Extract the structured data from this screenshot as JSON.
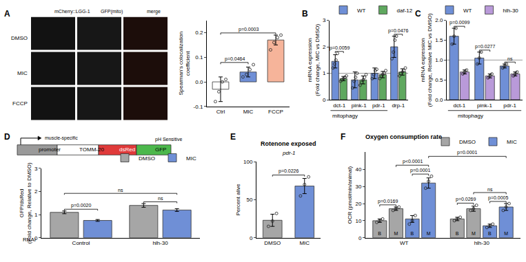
{
  "image_panel": {
    "columns": [
      "mCherry::LGG-1",
      "GFP(mito)",
      "merge"
    ],
    "rows": [
      "DMSO",
      "MIC",
      "FCCP"
    ]
  },
  "construct": {
    "note": "muscle-specific",
    "parts": [
      "promoter",
      "TOMM-20",
      "dsRed",
      "GFP"
    ],
    "tag": "pH Sensitive"
  },
  "chart_data": [
    {
      "panel": "A",
      "type": "bar",
      "categories": [
        "Ctrl",
        "MIC",
        "FCCP"
      ],
      "ylabel": "Spearman's colocalization\ncoefficient",
      "ylim": [
        -0.1,
        0.25
      ],
      "yticks": [
        -0.1,
        {
          "value": 0,
          "label": "0.0"
        },
        0.1,
        0.2
      ],
      "grid": false,
      "series": [
        {
          "colors": [
            "#ffffff",
            "#6f8fd6",
            "#f6b49a"
          ],
          "values": [
            -0.03,
            0.04,
            0.17
          ],
          "errors": [
            0.05,
            0.02,
            0.02
          ],
          "points": [
            [
              -0.08,
              -0.04,
              0.0,
              0.01
            ],
            [
              0.02,
              0.03,
              0.05,
              0.07
            ],
            [
              0.13,
              0.16,
              0.18,
              0.19
            ]
          ]
        }
      ],
      "comparisons": [
        {
          "from": {
            "category": "Ctrl"
          },
          "to": {
            "category": "MIC"
          },
          "text": "p=0.0464"
        },
        {
          "from": {
            "category": "Ctrl"
          },
          "to": {
            "category": "FCCP"
          },
          "text": "p=0.0003"
        }
      ]
    },
    {
      "panel": "B",
      "type": "bar",
      "categories": [
        "dct-1",
        "pink-1",
        "pdr-1",
        "drp-1"
      ],
      "ylabel": "mRNA expression\n(Fold change, MIC vs DMSO)",
      "ylim": [
        0,
        3
      ],
      "yticks": [
        0,
        1,
        2,
        3
      ],
      "grid": false,
      "baseline": 1,
      "legend": "upper left",
      "group_label": {
        "text": "mitophagy",
        "categories": [
          "dct-1",
          "pink-1",
          "pdr-1"
        ]
      },
      "series": [
        {
          "name": "WT",
          "color": "#6f8fd6",
          "values": [
            1.45,
            0.75,
            1.0,
            2.0
          ],
          "errors": [
            0.25,
            0.3,
            0.2,
            0.4
          ],
          "points": [
            [
              1.2,
              1.35,
              1.5,
              1.75
            ],
            [
              0.45,
              0.7,
              0.85,
              1.0
            ],
            [
              0.8,
              0.95,
              1.1,
              1.15
            ],
            [
              1.55,
              1.8,
              2.25,
              2.4
            ]
          ]
        },
        {
          "name": "daf-12",
          "color": "#5fa85f",
          "values": [
            0.8,
            0.75,
            0.95,
            1.05
          ],
          "errors": [
            0.08,
            0.15,
            0.12,
            0.12
          ],
          "points": [
            [
              0.7,
              0.75,
              0.8,
              0.85,
              0.9
            ],
            [
              0.55,
              0.65,
              0.75,
              0.85,
              0.95
            ],
            [
              0.8,
              0.9,
              0.95,
              1.0,
              1.1
            ],
            [
              0.9,
              1.0,
              1.05,
              1.1,
              1.2
            ]
          ]
        }
      ],
      "comparisons": [
        {
          "from": {
            "category": "dct-1",
            "series": "WT"
          },
          "to": {
            "category": "dct-1",
            "series": "daf-12"
          },
          "text": "p=0.0059"
        },
        {
          "from": {
            "category": "drp-1",
            "series": "WT"
          },
          "to": {
            "category": "drp-1",
            "series": "daf-12"
          },
          "text": "p=0.0476"
        }
      ]
    },
    {
      "panel": "C",
      "type": "bar",
      "categories": [
        "dct-1",
        "pink-1",
        "pdr-1"
      ],
      "ylabel": "mRNA expression\n(Fold change, Relative MIC vs DMSO)",
      "ylim": [
        0,
        2
      ],
      "yticks": [
        {
          "value": 0,
          "label": "0.0"
        },
        0.5,
        {
          "value": 1,
          "label": "1.0"
        },
        1.5,
        {
          "value": 2,
          "label": "2.0"
        }
      ],
      "grid": false,
      "baseline": 1,
      "legend": "upper right",
      "group_label": {
        "text": "mitophagy",
        "categories": [
          "dct-1",
          "pink-1",
          "pdr-1"
        ]
      },
      "series": [
        {
          "name": "WT",
          "color": "#6f8fd6",
          "values": [
            1.6,
            1.05,
            0.85
          ],
          "errors": [
            0.2,
            0.15,
            0.05
          ],
          "points": [
            [
              1.4,
              1.6,
              1.8
            ],
            [
              0.9,
              1.05,
              1.2
            ],
            [
              0.8,
              0.85,
              0.9
            ]
          ]
        },
        {
          "name": "hlh-30",
          "color": "#b99ad9",
          "values": [
            0.7,
            0.6,
            0.65
          ],
          "errors": [
            0.05,
            0.05,
            0.05
          ],
          "points": [
            [
              0.65,
              0.7,
              0.75
            ],
            [
              0.55,
              0.6,
              0.65
            ],
            [
              0.6,
              0.65,
              0.7
            ]
          ]
        }
      ],
      "comparisons": [
        {
          "from": {
            "category": "dct-1",
            "series": "WT"
          },
          "to": {
            "category": "dct-1",
            "series": "hlh-30"
          },
          "text": "p=0.0099"
        },
        {
          "from": {
            "category": "pink-1",
            "series": "WT"
          },
          "to": {
            "category": "pink-1",
            "series": "hlh-30"
          },
          "text": "p=0.0277"
        },
        {
          "from": {
            "category": "pdr-1",
            "series": "WT"
          },
          "to": {
            "category": "pdr-1",
            "series": "hlh-30"
          },
          "text": "ns"
        }
      ]
    },
    {
      "panel": "D",
      "type": "bar",
      "categories": [
        "Control",
        "hlh-30"
      ],
      "xlabel": "RNAi",
      "ylabel": "GFP/dsRed\n(Fold change, Relative to DMSO)",
      "ylim": [
        0,
        3
      ],
      "yticks": [
        0,
        1,
        2,
        3
      ],
      "grid": false,
      "legend": "upper right",
      "series": [
        {
          "name": "DMSO",
          "color": "#a6a6a6",
          "values": [
            1.1,
            1.4
          ],
          "errors": [
            0.06,
            0.08
          ]
        },
        {
          "name": "MIC",
          "color": "#6f8fd6",
          "values": [
            0.75,
            1.2
          ],
          "errors": [
            0.04,
            0.06
          ]
        }
      ],
      "comparisons": [
        {
          "from": {
            "category": "Control",
            "series": "DMSO"
          },
          "to": {
            "category": "Control",
            "series": "MIC"
          },
          "text": "p=0.0020"
        },
        {
          "from": {
            "category": "hlh-30",
            "series": "DMSO"
          },
          "to": {
            "category": "hlh-30",
            "series": "MIC"
          },
          "text": "ns"
        },
        {
          "from": {
            "category": "Control",
            "series": "DMSO"
          },
          "to": {
            "category": "hlh-30",
            "series": "MIC"
          },
          "text": "ns"
        }
      ]
    },
    {
      "panel": "E",
      "type": "bar",
      "title": "Rotenone exposed",
      "subtitle": "pdr-1",
      "categories": [
        "DMSO",
        "MIC"
      ],
      "ylabel": "Percent alive",
      "ylim": [
        0,
        100
      ],
      "yticks": [
        0,
        50,
        100
      ],
      "grid": false,
      "series": [
        {
          "colors": [
            "#a6a6a6",
            "#6f8fd6"
          ],
          "values": [
            23,
            68
          ],
          "errors": [
            8,
            10
          ],
          "points": [
            [
              15,
              22,
              32
            ],
            [
              55,
              70,
              80
            ]
          ]
        }
      ],
      "comparisons": [
        {
          "from": {
            "category": "DMSO"
          },
          "to": {
            "category": "MIC"
          },
          "text": "p=0.0226"
        }
      ]
    },
    {
      "panel": "F",
      "type": "bar",
      "title": "Oxygen consumption rate",
      "categories": [
        "WT",
        "hlh-30"
      ],
      "ylabel": "OCR (pmol/min/animal)",
      "ylim": [
        0,
        50
      ],
      "yticks": [
        0,
        10,
        20,
        30,
        40
      ],
      "grid": false,
      "legend": "upper right",
      "series": [
        {
          "name": "DMSO",
          "bar_text": "B",
          "color": "#a6a6a6",
          "values": [
            10,
            11
          ],
          "errors": [
            1,
            1
          ],
          "points": [
            [
              9,
              10,
              11
            ],
            [
              10,
              11,
              12
            ]
          ]
        },
        {
          "name": "DMSO",
          "bar_text": "M",
          "color": "#a6a6a6",
          "values": [
            17,
            17
          ],
          "errors": [
            1,
            1.5
          ],
          "points": [
            [
              16,
              17,
              18
            ],
            [
              16,
              17,
              19
            ]
          ]
        },
        {
          "name": "MIC",
          "bar_text": "B",
          "color": "#6f8fd6",
          "values": [
            11,
            7
          ],
          "errors": [
            2,
            1
          ],
          "points": [
            [
              8,
              10,
              13
            ],
            [
              6,
              7,
              8
            ]
          ]
        },
        {
          "name": "MIC",
          "bar_text": "M",
          "color": "#6f8fd6",
          "values": [
            32,
            18
          ],
          "errors": [
            3,
            2
          ],
          "points": [
            [
              29,
              33,
              36
            ],
            [
              16,
              18,
              20
            ]
          ]
        }
      ],
      "comparisons": [
        {
          "from": {
            "category": "WT",
            "series": "DMSO",
            "bar_text": "B"
          },
          "to": {
            "category": "WT",
            "series": "DMSO",
            "bar_text": "M"
          },
          "text": "p=0.0169"
        },
        {
          "from": {
            "category": "WT",
            "series": "MIC",
            "bar_text": "B"
          },
          "to": {
            "category": "WT",
            "series": "MIC",
            "bar_text": "M"
          },
          "text": "p=0.0001"
        },
        {
          "from": {
            "category": "WT",
            "series": "DMSO",
            "bar_text": "M"
          },
          "to": {
            "category": "WT",
            "series": "MIC",
            "bar_text": "M"
          },
          "text": "p<0.0001"
        },
        {
          "from": {
            "category": "hlh-30",
            "series": "DMSO",
            "bar_text": "B"
          },
          "to": {
            "category": "hlh-30",
            "series": "DMSO",
            "bar_text": "M"
          },
          "text": "p=0.0269"
        },
        {
          "from": {
            "category": "hlh-30",
            "series": "MIC",
            "bar_text": "B"
          },
          "to": {
            "category": "hlh-30",
            "series": "MIC",
            "bar_text": "M"
          },
          "text": "p=0.0005"
        },
        {
          "from": {
            "category": "hlh-30",
            "series": "DMSO",
            "bar_text": "M"
          },
          "to": {
            "category": "hlh-30",
            "series": "MIC",
            "bar_text": "M"
          },
          "text": "ns"
        },
        {
          "from": {
            "category": "WT",
            "series": "MIC",
            "bar_text": "M"
          },
          "to": {
            "category": "hlh-30",
            "series": "MIC",
            "bar_text": "M"
          },
          "text": "p=0.0001"
        }
      ]
    }
  ]
}
